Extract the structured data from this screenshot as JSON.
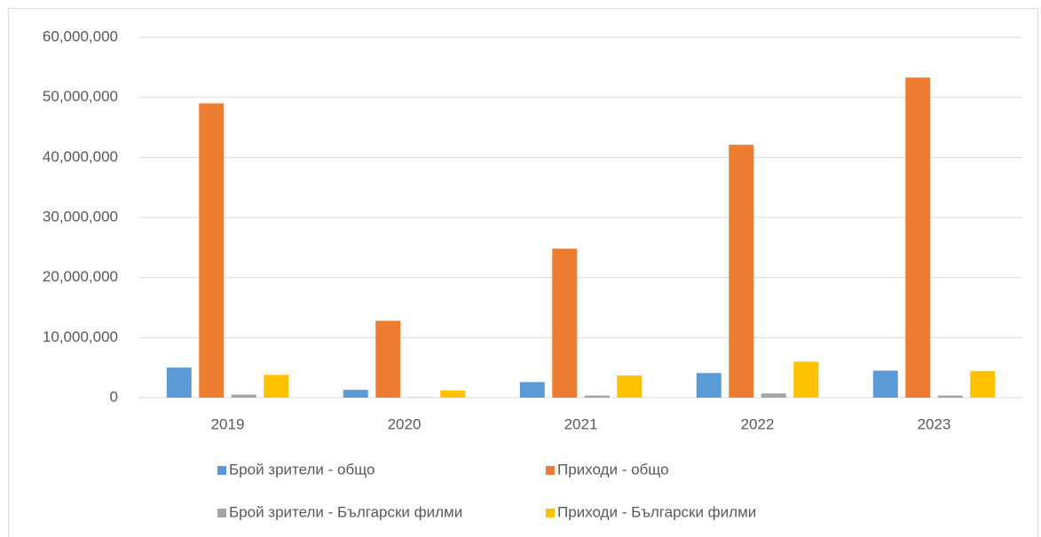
{
  "chart_data": {
    "type": "bar",
    "categories": [
      "2019",
      "2020",
      "2021",
      "2022",
      "2023"
    ],
    "series": [
      {
        "name": "Брой зрители - общо",
        "color": "#5b9bd5",
        "values": [
          5000000,
          1300000,
          2600000,
          4100000,
          4500000
        ]
      },
      {
        "name": "Приходи - общо",
        "color": "#ed7d31",
        "values": [
          49000000,
          12800000,
          24800000,
          42100000,
          53300000
        ]
      },
      {
        "name": "Брой зрители - Български филми",
        "color": "#a5a5a5",
        "values": [
          500000,
          50000,
          350000,
          700000,
          350000
        ]
      },
      {
        "name": "Приходи - Български филми",
        "color": "#ffc000",
        "values": [
          3800000,
          1200000,
          3700000,
          6000000,
          4400000
        ]
      }
    ],
    "ylim": [
      0,
      60000000
    ],
    "yticks": [
      0,
      {
        "value": 10000000,
        "label": "10,000,000"
      },
      {
        "value": 20000000,
        "label": "20,000,000"
      },
      {
        "value": 30000000,
        "label": "30,000,000"
      },
      {
        "value": 40000000,
        "label": "40,000,000"
      },
      {
        "value": 50000000,
        "label": "50,000,000"
      },
      {
        "value": 60000000,
        "label": "60,000,000"
      }
    ],
    "grid": true,
    "legend": "bottom"
  }
}
